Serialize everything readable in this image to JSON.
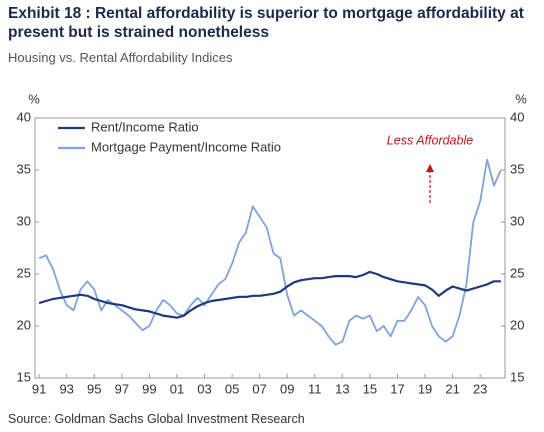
{
  "chart_data": {
    "type": "line",
    "title": "Exhibit 18 : Rental affordability is superior to mortgage affordability at present but is strained nonetheless",
    "subtitle": "Housing vs. Rental Affordability Indices",
    "source": "Source: Goldman Sachs Global Investment Research",
    "y_label": "%",
    "y2_label": "%",
    "annotations": [
      "Less Affordable"
    ],
    "legend": "upper left",
    "x": [
      1991,
      1991.5,
      1992,
      1992.5,
      1993,
      1993.5,
      1994,
      1994.5,
      1995,
      1995.5,
      1996,
      1996.5,
      1997,
      1997.5,
      1998,
      1998.5,
      1999,
      1999.5,
      2000,
      2000.5,
      2001,
      2001.5,
      2002,
      2002.5,
      2003,
      2003.5,
      2004,
      2004.5,
      2005,
      2005.5,
      2006,
      2006.5,
      2007,
      2007.5,
      2008,
      2008.5,
      2009,
      2009.5,
      2010,
      2010.5,
      2011,
      2011.5,
      2012,
      2012.5,
      2013,
      2013.5,
      2014,
      2014.5,
      2015,
      2015.5,
      2016,
      2016.5,
      2017,
      2017.5,
      2018,
      2018.5,
      2019,
      2019.5,
      2020,
      2020.5,
      2021,
      2021.5,
      2022,
      2022.5,
      2023,
      2023.5,
      2024,
      2024.5
    ],
    "series": [
      {
        "name": "Rent/Income Ratio",
        "color": "#1f3a7a",
        "values": [
          22.2,
          22.4,
          22.6,
          22.7,
          22.8,
          22.9,
          23.0,
          22.9,
          22.6,
          22.4,
          22.2,
          22.1,
          22.0,
          21.8,
          21.6,
          21.5,
          21.4,
          21.2,
          21.0,
          20.9,
          20.8,
          21.0,
          21.5,
          21.9,
          22.2,
          22.4,
          22.5,
          22.6,
          22.7,
          22.8,
          22.8,
          22.9,
          22.9,
          23.0,
          23.1,
          23.3,
          23.8,
          24.2,
          24.4,
          24.5,
          24.6,
          24.6,
          24.7,
          24.8,
          24.8,
          24.8,
          24.7,
          24.9,
          25.2,
          25.0,
          24.7,
          24.5,
          24.3,
          24.2,
          24.1,
          24.0,
          23.9,
          23.5,
          22.9,
          23.4,
          23.8,
          23.6,
          23.4,
          23.6,
          23.8,
          24.0,
          24.3,
          24.3
        ]
      },
      {
        "name": "Mortgage Payment/Income Ratio",
        "color": "#7ea3dd",
        "values": [
          26.5,
          26.8,
          25.5,
          23.5,
          22.0,
          21.5,
          23.5,
          24.3,
          23.5,
          21.5,
          22.5,
          22.0,
          21.5,
          21.0,
          20.3,
          19.6,
          20.0,
          21.5,
          22.5,
          22.0,
          21.2,
          21.0,
          22.0,
          22.7,
          22.0,
          23.0,
          24.0,
          24.5,
          26.0,
          28.0,
          29.0,
          31.5,
          30.5,
          29.5,
          27.0,
          26.5,
          23.0,
          21.0,
          21.5,
          21.0,
          20.5,
          20.0,
          19.0,
          18.2,
          18.5,
          20.5,
          21.0,
          20.7,
          21.0,
          19.5,
          20.0,
          19.0,
          20.5,
          20.5,
          21.5,
          22.8,
          22.0,
          20.0,
          19.0,
          18.5,
          19.0,
          21.0,
          24.0,
          30.0,
          32.0,
          36.0,
          33.5,
          35.0
        ]
      }
    ],
    "xlim": [
      1990.7,
      2024.8
    ],
    "xticks": [
      {
        "value": 1991,
        "label": "91"
      },
      {
        "value": 1993,
        "label": "93"
      },
      {
        "value": 1995,
        "label": "95"
      },
      {
        "value": 1997,
        "label": "97"
      },
      {
        "value": 1999,
        "label": "99"
      },
      {
        "value": 2001,
        "label": "01"
      },
      {
        "value": 2003,
        "label": "03"
      },
      {
        "value": 2005,
        "label": "05"
      },
      {
        "value": 2007,
        "label": "07"
      },
      {
        "value": 2009,
        "label": "09"
      },
      {
        "value": 2011,
        "label": "11"
      },
      {
        "value": 2013,
        "label": "13"
      },
      {
        "value": 2015,
        "label": "15"
      },
      {
        "value": 2017,
        "label": "17"
      },
      {
        "value": 2019,
        "label": "19"
      },
      {
        "value": 2021,
        "label": "21"
      },
      {
        "value": 2023,
        "label": "23"
      }
    ],
    "ylim": [
      15,
      40
    ],
    "yticks": [
      15,
      20,
      25,
      30,
      35,
      40
    ],
    "y2lim": [
      15,
      40
    ],
    "y2ticks": [
      15,
      20,
      25,
      30,
      35,
      40
    ]
  }
}
